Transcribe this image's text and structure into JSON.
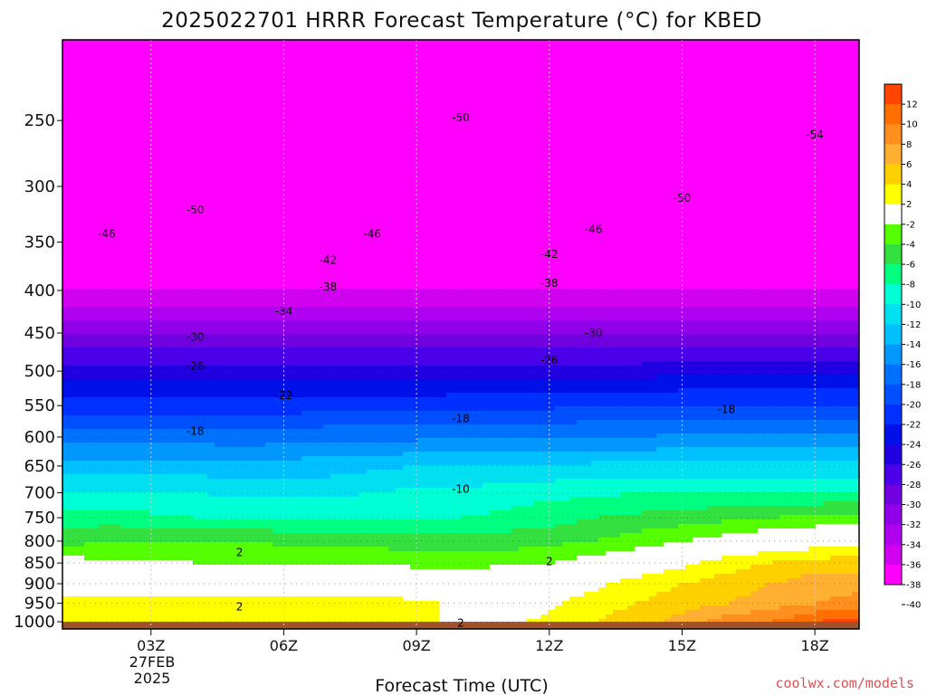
{
  "title": "2025022701 HRRR Forecast Temperature (°C) for KBED",
  "credit": "coolwx.com/models",
  "chart_data": {
    "type": "heatmap",
    "title": "2025022701 HRRR Forecast Temperature (°C) for KBED",
    "xlabel": "Forecast Time (UTC)",
    "ylabel": "",
    "x_ticks": [
      {
        "label": "03Z",
        "hour": 3
      },
      {
        "label": "06Z",
        "hour": 6
      },
      {
        "label": "09Z",
        "hour": 9
      },
      {
        "label": "12Z",
        "hour": 12
      },
      {
        "label": "15Z",
        "hour": 15
      },
      {
        "label": "18Z",
        "hour": 18
      }
    ],
    "date_label": [
      "27FEB",
      "2025"
    ],
    "xlim": [
      1,
      19
    ],
    "y_scale": "log-pressure",
    "ylim": [
      1020,
      200
    ],
    "y_ticks": [
      250,
      300,
      350,
      400,
      450,
      500,
      550,
      600,
      650,
      700,
      750,
      800,
      850,
      900,
      950,
      1000
    ],
    "grid": true,
    "surface_pressure": 1000,
    "colorbar": {
      "placement": "right",
      "ticks": [
        "12",
        "10",
        "8",
        "6",
        "4",
        "2",
        "-2",
        "-4",
        "-6",
        "-8",
        "-10",
        "-12",
        "-14",
        "-16",
        "-18",
        "-20",
        "-22",
        "-24",
        "-26",
        "-28",
        "-30",
        "-32",
        "-34",
        "-36",
        "-38",
        "-40"
      ],
      "colors": [
        "#ff4500",
        "#ff7000",
        "#ff9020",
        "#ffb030",
        "#ffd000",
        "#ffff00",
        "#ffffff",
        "#55ff00",
        "#33e040",
        "#00ff80",
        "#00ffd5",
        "#00e0f0",
        "#00c0ff",
        "#0098ff",
        "#0070ff",
        "#0050ff",
        "#0030ff",
        "#0010e8",
        "#2000e0",
        "#4a00e8",
        "#7000e0",
        "#9000e8",
        "#b000f0",
        "#d000f0",
        "#ff00ff"
      ]
    },
    "levels": [
      {
        "p": 1000,
        "t": [
          3,
          3,
          3,
          3,
          3,
          3,
          3,
          3,
          2.5,
          1.5,
          1.5,
          2.5,
          4,
          5,
          7,
          9,
          10,
          12,
          13
        ]
      },
      {
        "p": 950,
        "t": [
          3,
          3,
          3,
          3,
          3,
          3,
          3,
          3,
          2.5,
          1.5,
          1,
          1.5,
          3,
          4,
          5,
          6,
          7,
          8,
          9
        ]
      },
      {
        "p": 900,
        "t": [
          0.5,
          0.5,
          0,
          0,
          0,
          0,
          -0.5,
          -0.5,
          0,
          1,
          1,
          1,
          1.5,
          3,
          4,
          5,
          6,
          7,
          7
        ]
      },
      {
        "p": 850,
        "t": [
          -1,
          -1.5,
          -1.5,
          -2,
          -2,
          -2,
          -2,
          -2,
          -2.5,
          -3,
          -2.5,
          -2,
          -1,
          0,
          1.5,
          3,
          4,
          5,
          5
        ]
      },
      {
        "p": 800,
        "t": [
          -5,
          -4,
          -4,
          -4,
          -4,
          -4.5,
          -4.5,
          -5,
          -5,
          -5,
          -5,
          -4.5,
          -4,
          -3,
          -2,
          -1,
          0,
          0.5,
          1
        ]
      },
      {
        "p": 750,
        "t": [
          -7,
          -7,
          -7.5,
          -8,
          -8,
          -8,
          -8,
          -8,
          -8,
          -8,
          -7.5,
          -7,
          -6,
          -5.5,
          -5,
          -4.5,
          -4,
          -3.5,
          -3
        ]
      },
      {
        "p": 700,
        "t": [
          -10,
          -10,
          -10,
          -10,
          -10.5,
          -10.5,
          -10.5,
          -10,
          -9.5,
          -9.5,
          -9,
          -8.5,
          -8.5,
          -8,
          -8,
          -8,
          -8,
          -8,
          -8
        ]
      },
      {
        "p": 650,
        "t": [
          -13,
          -13,
          -13,
          -13,
          -13.5,
          -13,
          -13,
          -12.5,
          -12,
          -12,
          -12,
          -12,
          -11.5,
          -11.5,
          -11.5,
          -11.5,
          -11.5,
          -11.5,
          -11.5
        ]
      },
      {
        "p": 600,
        "t": [
          -17,
          -17,
          -17,
          -17,
          -17,
          -17,
          -16.5,
          -16.5,
          -16.5,
          -16,
          -16,
          -16,
          -16,
          -16,
          -15.5,
          -15.5,
          -15.5,
          -15.5,
          -15.5
        ]
      },
      {
        "p": 550,
        "t": [
          -21,
          -21,
          -21,
          -21,
          -21,
          -21,
          -21,
          -21,
          -21,
          -20.5,
          -20.5,
          -20.5,
          -20,
          -20,
          -20,
          -20,
          -20,
          -20,
          -20
        ]
      },
      {
        "p": 500,
        "t": [
          -25,
          -25,
          -25,
          -25,
          -25,
          -25,
          -25,
          -25,
          -25,
          -25,
          -25,
          -25,
          -25,
          -25,
          -24.5,
          -24.5,
          -24.5,
          -24.5,
          -24.5
        ]
      },
      {
        "p": 450,
        "t": [
          -30,
          -30,
          -30,
          -30,
          -30,
          -30,
          -30,
          -30,
          -30,
          -30,
          -30,
          -30,
          -30,
          -30,
          -30,
          -30,
          -30,
          -30,
          -30
        ]
      },
      {
        "p": 400,
        "t": [
          -36,
          -36,
          -36,
          -36,
          -36,
          -36,
          -36,
          -36,
          -36,
          -36,
          -36,
          -36,
          -36,
          -36,
          -36,
          -36,
          -36,
          -36,
          -36
        ]
      },
      {
        "p": 350,
        "t": [
          -43,
          -43,
          -43,
          -43,
          -43,
          -43,
          -43,
          -43,
          -43,
          -43,
          -43,
          -43,
          -43,
          -43,
          -43,
          -43,
          -43,
          -43,
          -43
        ]
      },
      {
        "p": 300,
        "t": [
          -49,
          -49,
          -49,
          -49,
          -49,
          -49,
          -49,
          -49,
          -49,
          -49,
          -49,
          -49,
          -49,
          -49,
          -49,
          -49,
          -49,
          -49,
          -49
        ]
      },
      {
        "p": 250,
        "t": [
          -53,
          -53,
          -53,
          -53,
          -53,
          -53,
          -53,
          -53,
          -53,
          -53,
          -53,
          -53,
          -53,
          -53,
          -53,
          -53,
          -53,
          -53,
          -53
        ]
      },
      {
        "p": 200,
        "t": [
          -56,
          -56,
          -56,
          -56,
          -56,
          -56,
          -56,
          -56,
          -56,
          -56,
          -56,
          -56,
          -56,
          -56,
          -56,
          -56,
          -56,
          -56,
          -56
        ]
      }
    ],
    "contour_labels": [
      {
        "text": "-50",
        "hour": 10,
        "p": 248
      },
      {
        "text": "-54",
        "hour": 18,
        "p": 260
      },
      {
        "text": "-50",
        "hour": 4,
        "p": 320
      },
      {
        "text": "-50",
        "hour": 15,
        "p": 310
      },
      {
        "text": "-46",
        "hour": 2,
        "p": 342
      },
      {
        "text": "-46",
        "hour": 8,
        "p": 342
      },
      {
        "text": "-46",
        "hour": 13,
        "p": 338
      },
      {
        "text": "-42",
        "hour": 7,
        "p": 368
      },
      {
        "text": "-42",
        "hour": 12,
        "p": 362
      },
      {
        "text": "-38",
        "hour": 7,
        "p": 396
      },
      {
        "text": "-38",
        "hour": 12,
        "p": 392
      },
      {
        "text": "-34",
        "hour": 6,
        "p": 424
      },
      {
        "text": "-30",
        "hour": 4,
        "p": 455
      },
      {
        "text": "-30",
        "hour": 13,
        "p": 450
      },
      {
        "text": "-26",
        "hour": 4,
        "p": 493
      },
      {
        "text": "-26",
        "hour": 12,
        "p": 485
      },
      {
        "text": "-22",
        "hour": 6,
        "p": 535
      },
      {
        "text": "-18",
        "hour": 4,
        "p": 590
      },
      {
        "text": "-18",
        "hour": 10,
        "p": 570
      },
      {
        "text": "-18",
        "hour": 16,
        "p": 556
      },
      {
        "text": "-10",
        "hour": 10,
        "p": 693
      },
      {
        "text": "2",
        "hour": 5,
        "p": 826
      },
      {
        "text": "2",
        "hour": 12,
        "p": 847
      },
      {
        "text": "2",
        "hour": 5,
        "p": 959
      },
      {
        "text": "2",
        "hour": 10,
        "p": 1004
      }
    ]
  }
}
